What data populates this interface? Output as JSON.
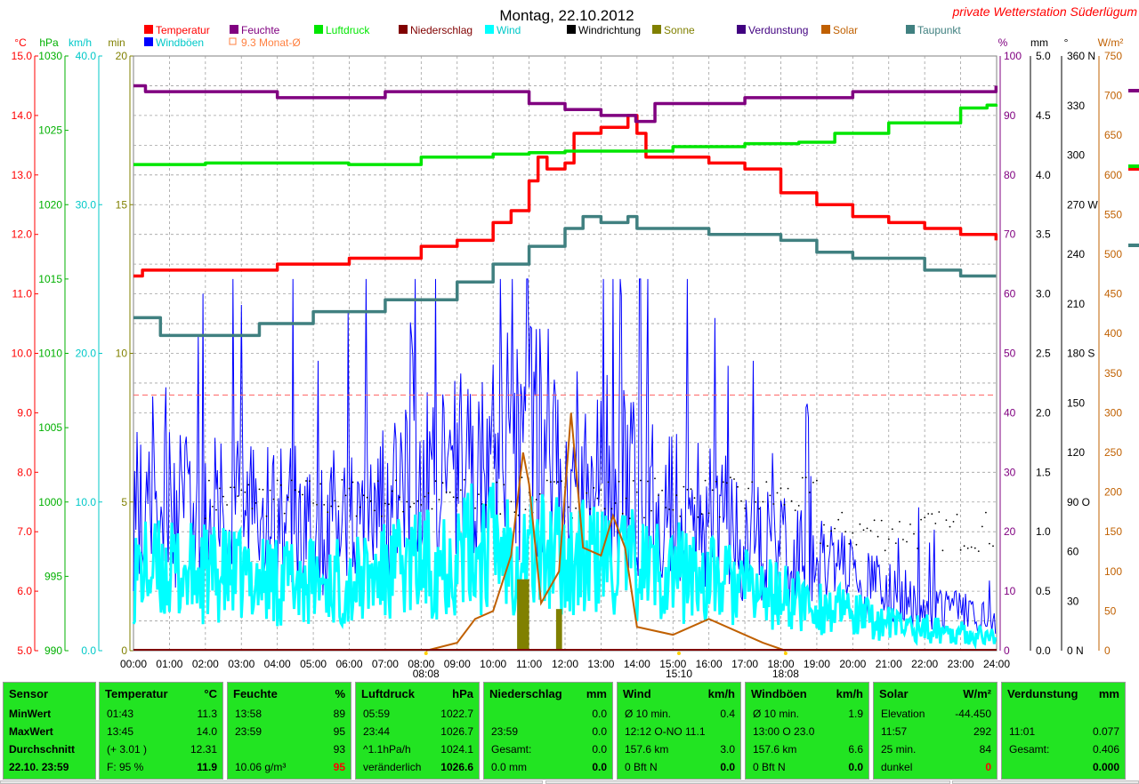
{
  "title": "Montag, 22.10.2012",
  "site_label": "private Wetterstation Süderlügum",
  "legend": [
    {
      "label": "Temperatur",
      "color": "#ff0000"
    },
    {
      "label": "Feuchte",
      "color": "#800080"
    },
    {
      "label": "Luftdruck",
      "color": "#00e600"
    },
    {
      "label": "Niederschlag",
      "color": "#800000"
    },
    {
      "label": "Wind",
      "color": "#00ffff"
    },
    {
      "label": "Windrichtung",
      "color": "#000000"
    },
    {
      "label": "Sonne",
      "color": "#808000"
    },
    {
      "label": "Verdunstung",
      "color": "#400080"
    },
    {
      "label": "Solar",
      "color": "#c06000"
    },
    {
      "label": "Taupunkt",
      "color": "#408080"
    },
    {
      "label": "Windböen",
      "color": "#0000ff"
    },
    {
      "label": "9.3 Monat-Ø",
      "color": "#ff8040"
    }
  ],
  "axes": {
    "left": [
      {
        "unit": "°C",
        "color": "#ff0000",
        "ticks": [
          "15.0",
          "14.0",
          "13.0",
          "12.0",
          "11.0",
          "10.0",
          "9.0",
          "8.0",
          "7.0",
          "6.0",
          "5.0"
        ]
      },
      {
        "unit": "hPa",
        "color": "#00b000",
        "ticks": [
          "1030",
          "1025",
          "1020",
          "1015",
          "1010",
          "1005",
          "1000",
          "995",
          "990"
        ]
      },
      {
        "unit": "km/h",
        "color": "#00c8c8",
        "ticks": [
          "40.0",
          "30.0",
          "20.0",
          "10.0",
          "0.0"
        ]
      },
      {
        "unit": "min",
        "color": "#808000",
        "ticks": [
          "20",
          "15",
          "10",
          "5",
          "0"
        ]
      }
    ],
    "right": [
      {
        "unit": "%",
        "color": "#800080",
        "ticks": [
          "100",
          "90",
          "80",
          "70",
          "60",
          "50",
          "40",
          "30",
          "20",
          "10",
          "0"
        ]
      },
      {
        "unit": "mm",
        "color": "#000000",
        "ticks": [
          "5.0",
          "4.5",
          "4.0",
          "3.5",
          "3.0",
          "2.5",
          "2.0",
          "1.5",
          "1.0",
          "0.5",
          "0.0"
        ]
      },
      {
        "unit": "°",
        "color": "#000000",
        "ticks": [
          "360 N",
          "330",
          "300",
          "270 W",
          "240",
          "210",
          "180 S",
          "150",
          "120",
          "90 O",
          "60",
          "30",
          "0 N"
        ]
      },
      {
        "unit": "W/m²",
        "color": "#c06000",
        "ticks": [
          "750",
          "700",
          "650",
          "600",
          "550",
          "500",
          "450",
          "400",
          "350",
          "300",
          "250",
          "200",
          "150",
          "100",
          "50",
          "0"
        ]
      }
    ],
    "x_ticks": [
      "00:00",
      "01:00",
      "02:00",
      "03:00",
      "04:00",
      "05:00",
      "06:00",
      "07:00",
      "08:00",
      "09:00",
      "10:00",
      "11:00",
      "12:00",
      "13:00",
      "14:00",
      "15:00",
      "16:00",
      "17:00",
      "18:00",
      "19:00",
      "20:00",
      "21:00",
      "22:00",
      "23:00",
      "24:00"
    ],
    "sun_markers": [
      "08:08",
      "15:10",
      "18:08"
    ]
  },
  "chart_data": {
    "type": "line",
    "title": "Montag, 22.10.2012",
    "x_range": [
      "00:00",
      "24:00"
    ],
    "grid": true,
    "series": [
      {
        "name": "Temperatur",
        "unit": "°C",
        "ylim": [
          5,
          15
        ],
        "points": [
          [
            "00:00",
            11.3
          ],
          [
            "00:15",
            11.4
          ],
          [
            "03:00",
            11.4
          ],
          [
            "04:00",
            11.5
          ],
          [
            "06:00",
            11.6
          ],
          [
            "08:00",
            11.8
          ],
          [
            "09:00",
            11.9
          ],
          [
            "10:00",
            12.2
          ],
          [
            "10:30",
            12.4
          ],
          [
            "11:00",
            12.9
          ],
          [
            "11:15",
            13.3
          ],
          [
            "11:30",
            13.1
          ],
          [
            "12:00",
            13.2
          ],
          [
            "12:15",
            13.7
          ],
          [
            "13:00",
            13.8
          ],
          [
            "13:45",
            14.0
          ],
          [
            "14:00",
            13.7
          ],
          [
            "14:15",
            13.3
          ],
          [
            "15:00",
            13.3
          ],
          [
            "16:00",
            13.2
          ],
          [
            "17:00",
            13.1
          ],
          [
            "18:00",
            12.7
          ],
          [
            "19:00",
            12.5
          ],
          [
            "20:00",
            12.3
          ],
          [
            "21:00",
            12.2
          ],
          [
            "22:00",
            12.1
          ],
          [
            "23:00",
            12.0
          ],
          [
            "23:59",
            11.9
          ]
        ]
      },
      {
        "name": "Feuchte",
        "unit": "%",
        "ylim": [
          0,
          100
        ],
        "points": [
          [
            "00:00",
            95
          ],
          [
            "00:20",
            94
          ],
          [
            "04:00",
            93
          ],
          [
            "07:00",
            94
          ],
          [
            "11:00",
            92
          ],
          [
            "12:00",
            91
          ],
          [
            "13:00",
            90
          ],
          [
            "13:58",
            89
          ],
          [
            "14:30",
            92
          ],
          [
            "17:00",
            93
          ],
          [
            "20:00",
            94
          ],
          [
            "23:59",
            95
          ]
        ]
      },
      {
        "name": "Luftdruck",
        "unit": "hPa",
        "ylim": [
          990,
          1030
        ],
        "points": [
          [
            "00:00",
            1022.7
          ],
          [
            "02:00",
            1022.8
          ],
          [
            "05:59",
            1022.7
          ],
          [
            "08:00",
            1023.2
          ],
          [
            "10:00",
            1023.4
          ],
          [
            "11:00",
            1023.5
          ],
          [
            "12:00",
            1023.6
          ],
          [
            "14:00",
            1023.6
          ],
          [
            "15:00",
            1023.9
          ],
          [
            "17:00",
            1024.1
          ],
          [
            "18:30",
            1024.2
          ],
          [
            "19:30",
            1024.8
          ],
          [
            "21:00",
            1025.5
          ],
          [
            "23:00",
            1026.5
          ],
          [
            "23:44",
            1026.7
          ],
          [
            "23:59",
            1026.6
          ]
        ]
      },
      {
        "name": "Taupunkt",
        "unit": "°C",
        "ylim": [
          5,
          15
        ],
        "points": [
          [
            "00:00",
            10.6
          ],
          [
            "00:45",
            10.3
          ],
          [
            "03:30",
            10.5
          ],
          [
            "05:00",
            10.7
          ],
          [
            "07:00",
            10.9
          ],
          [
            "09:00",
            11.2
          ],
          [
            "10:00",
            11.5
          ],
          [
            "11:00",
            11.8
          ],
          [
            "11:30",
            11.8
          ],
          [
            "12:00",
            12.1
          ],
          [
            "12:30",
            12.3
          ],
          [
            "13:00",
            12.2
          ],
          [
            "13:45",
            12.3
          ],
          [
            "14:00",
            12.1
          ],
          [
            "15:00",
            12.1
          ],
          [
            "16:00",
            12.0
          ],
          [
            "17:00",
            12.0
          ],
          [
            "18:00",
            11.9
          ],
          [
            "19:00",
            11.7
          ],
          [
            "20:00",
            11.6
          ],
          [
            "21:00",
            11.6
          ],
          [
            "22:00",
            11.4
          ],
          [
            "23:00",
            11.3
          ],
          [
            "23:59",
            11.3
          ]
        ]
      },
      {
        "name": "Solar",
        "unit": "W/m²",
        "ylim": [
          0,
          750
        ],
        "points": [
          [
            "08:08",
            0
          ],
          [
            "09:00",
            10
          ],
          [
            "09:30",
            40
          ],
          [
            "10:00",
            50
          ],
          [
            "10:30",
            120
          ],
          [
            "10:50",
            250
          ],
          [
            "11:00",
            210
          ],
          [
            "11:20",
            60
          ],
          [
            "11:50",
            100
          ],
          [
            "12:10",
            300
          ],
          [
            "12:30",
            130
          ],
          [
            "13:00",
            120
          ],
          [
            "13:20",
            170
          ],
          [
            "13:40",
            130
          ],
          [
            "14:00",
            30
          ],
          [
            "15:00",
            20
          ],
          [
            "16:00",
            40
          ],
          [
            "17:00",
            20
          ],
          [
            "17:30",
            10
          ],
          [
            "18:08",
            0
          ]
        ]
      },
      {
        "name": "Wind",
        "unit": "km/h",
        "ylim": [
          0,
          40
        ],
        "description_points": [
          [
            "00:00",
            6
          ],
          [
            "06:00",
            5
          ],
          [
            "10:00",
            8
          ],
          [
            "12:00",
            7
          ],
          [
            "15:00",
            6
          ],
          [
            "18:00",
            4
          ],
          [
            "21:00",
            2
          ],
          [
            "23:59",
            1
          ]
        ]
      },
      {
        "name": "Windböen",
        "unit": "km/h",
        "ylim": [
          0,
          40
        ],
        "description_points": [
          [
            "00:00",
            10
          ],
          [
            "06:00",
            9
          ],
          [
            "11:00",
            15
          ],
          [
            "14:00",
            12
          ],
          [
            "18:00",
            7
          ],
          [
            "21:00",
            4
          ],
          [
            "23:59",
            2
          ]
        ]
      }
    ],
    "reference_lines": [
      {
        "name": "9.3 Monat-Ø",
        "unit": "°C",
        "value": 9.3
      }
    ]
  },
  "panel": {
    "blocks": [
      {
        "head": "Sensor",
        "unit": "",
        "rows": [
          [
            "MinWert",
            ""
          ],
          [
            "MaxWert",
            ""
          ],
          [
            "Durchschnitt",
            ""
          ],
          [
            "22.10. 23:59",
            ""
          ]
        ]
      },
      {
        "head": "Temperatur",
        "unit": "°C",
        "rows": [
          [
            "01:43",
            "11.3"
          ],
          [
            "13:45",
            "14.0"
          ],
          [
            "(+ 3.01 )",
            "12.31"
          ],
          [
            "F: 95 %",
            "11.9"
          ]
        ]
      },
      {
        "head": "Feuchte",
        "unit": "%",
        "rows": [
          [
            "13:58",
            "89"
          ],
          [
            "23:59",
            "95"
          ],
          [
            "",
            "93"
          ],
          [
            "10.06 g/m³",
            "95"
          ]
        ]
      },
      {
        "head": "Luftdruck",
        "unit": "hPa",
        "rows": [
          [
            "05:59",
            "1022.7"
          ],
          [
            "23:44",
            "1026.7"
          ],
          [
            "^1.1hPa/h",
            "1024.1"
          ],
          [
            "veränderlich",
            "1026.6"
          ]
        ]
      },
      {
        "head": "Niederschlag",
        "unit": "mm",
        "rows": [
          [
            "",
            "0.0"
          ],
          [
            "23:59",
            "0.0"
          ],
          [
            "Gesamt:",
            "0.0"
          ],
          [
            "0.0 mm",
            "0.0"
          ]
        ]
      },
      {
        "head": "Wind",
        "unit": "km/h",
        "rows": [
          [
            "Ø 10 min.",
            "0.4"
          ],
          [
            "12:12  O-NO 11.1",
            ""
          ],
          [
            "157.6 km",
            "3.0"
          ],
          [
            "0 Bft N",
            "0.0"
          ]
        ]
      },
      {
        "head": "Windböen",
        "unit": "km/h",
        "rows": [
          [
            "Ø 10 min.",
            "1.9"
          ],
          [
            "13:00  O 23.0",
            ""
          ],
          [
            "157.6 km",
            "6.6"
          ],
          [
            "0 Bft N",
            "0.0"
          ]
        ]
      },
      {
        "head": "Solar",
        "unit": "W/m²",
        "rows": [
          [
            "Elevation",
            "-44.450"
          ],
          [
            "11:57",
            "292"
          ],
          [
            "25 min.",
            "84"
          ],
          [
            "dunkel",
            "0"
          ]
        ]
      },
      {
        "head": "Verdunstung",
        "unit": "mm",
        "rows": [
          [
            "",
            ""
          ],
          [
            "11:01",
            "0.077"
          ],
          [
            "Gesamt:",
            "0.406"
          ],
          [
            "",
            "0.000"
          ]
        ]
      }
    ]
  }
}
